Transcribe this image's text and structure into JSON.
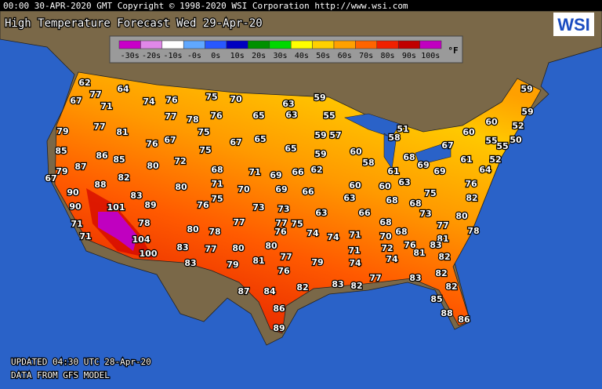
{
  "header": {
    "banner": "00:00 30-APR-2020 GMT Copyright © 1998-2020 WSI Corporation  http://www.wsi.com",
    "title": "High Temperature Forecast  Wed 29-Apr-20",
    "logo": "WSI"
  },
  "legend": {
    "unit": "°F",
    "items": [
      {
        "label": "-30s",
        "color": "#c800c8"
      },
      {
        "label": "-20s",
        "color": "#e088e8"
      },
      {
        "label": "-10s",
        "color": "#ffffff"
      },
      {
        "label": "-0s",
        "color": "#60a8ff"
      },
      {
        "label": "0s",
        "color": "#2858ff"
      },
      {
        "label": "10s",
        "color": "#0000c0"
      },
      {
        "label": "20s",
        "color": "#009000"
      },
      {
        "label": "30s",
        "color": "#00d800"
      },
      {
        "label": "40s",
        "color": "#ffff00"
      },
      {
        "label": "50s",
        "color": "#ffd000"
      },
      {
        "label": "60s",
        "color": "#ffa000"
      },
      {
        "label": "70s",
        "color": "#ff6400"
      },
      {
        "label": "80s",
        "color": "#f02000"
      },
      {
        "label": "90s",
        "color": "#c00000"
      },
      {
        "label": "100s",
        "color": "#c000c0"
      }
    ]
  },
  "temperatures": [
    62,
    77,
    64,
    67,
    71,
    74,
    76,
    75,
    70,
    63,
    59,
    59,
    77,
    78,
    76,
    65,
    63,
    55,
    59,
    77,
    81,
    75,
    79,
    60,
    52,
    76,
    67,
    67,
    65,
    59,
    57,
    51,
    58,
    60,
    55,
    50,
    85,
    86,
    85,
    75,
    65,
    60,
    67,
    55,
    79,
    87,
    80,
    72,
    59,
    58,
    68,
    69,
    61,
    52,
    67,
    82,
    68,
    71,
    69,
    66,
    62,
    61,
    69,
    64,
    88,
    71,
    80,
    70,
    69,
    66,
    60,
    60,
    63,
    76,
    90,
    83,
    63,
    75,
    82,
    90,
    101,
    89,
    76,
    75,
    73,
    73,
    63,
    66,
    68,
    68,
    73,
    77,
    80,
    71,
    78,
    77,
    77,
    75,
    68,
    78,
    71,
    80,
    78,
    76,
    74,
    74,
    71,
    70,
    68,
    81,
    104,
    83,
    77,
    80,
    80,
    71,
    72,
    76,
    83,
    81,
    100,
    77,
    74,
    74,
    82,
    83,
    79,
    81,
    79,
    76,
    82,
    77,
    83,
    87,
    84,
    82,
    83,
    82,
    82,
    86,
    85,
    88,
    86,
    89
  ],
  "footer": {
    "updated": "UPDATED 04:30 UTC 28-Apr-20",
    "source": "DATA FROM GFS MODEL"
  }
}
